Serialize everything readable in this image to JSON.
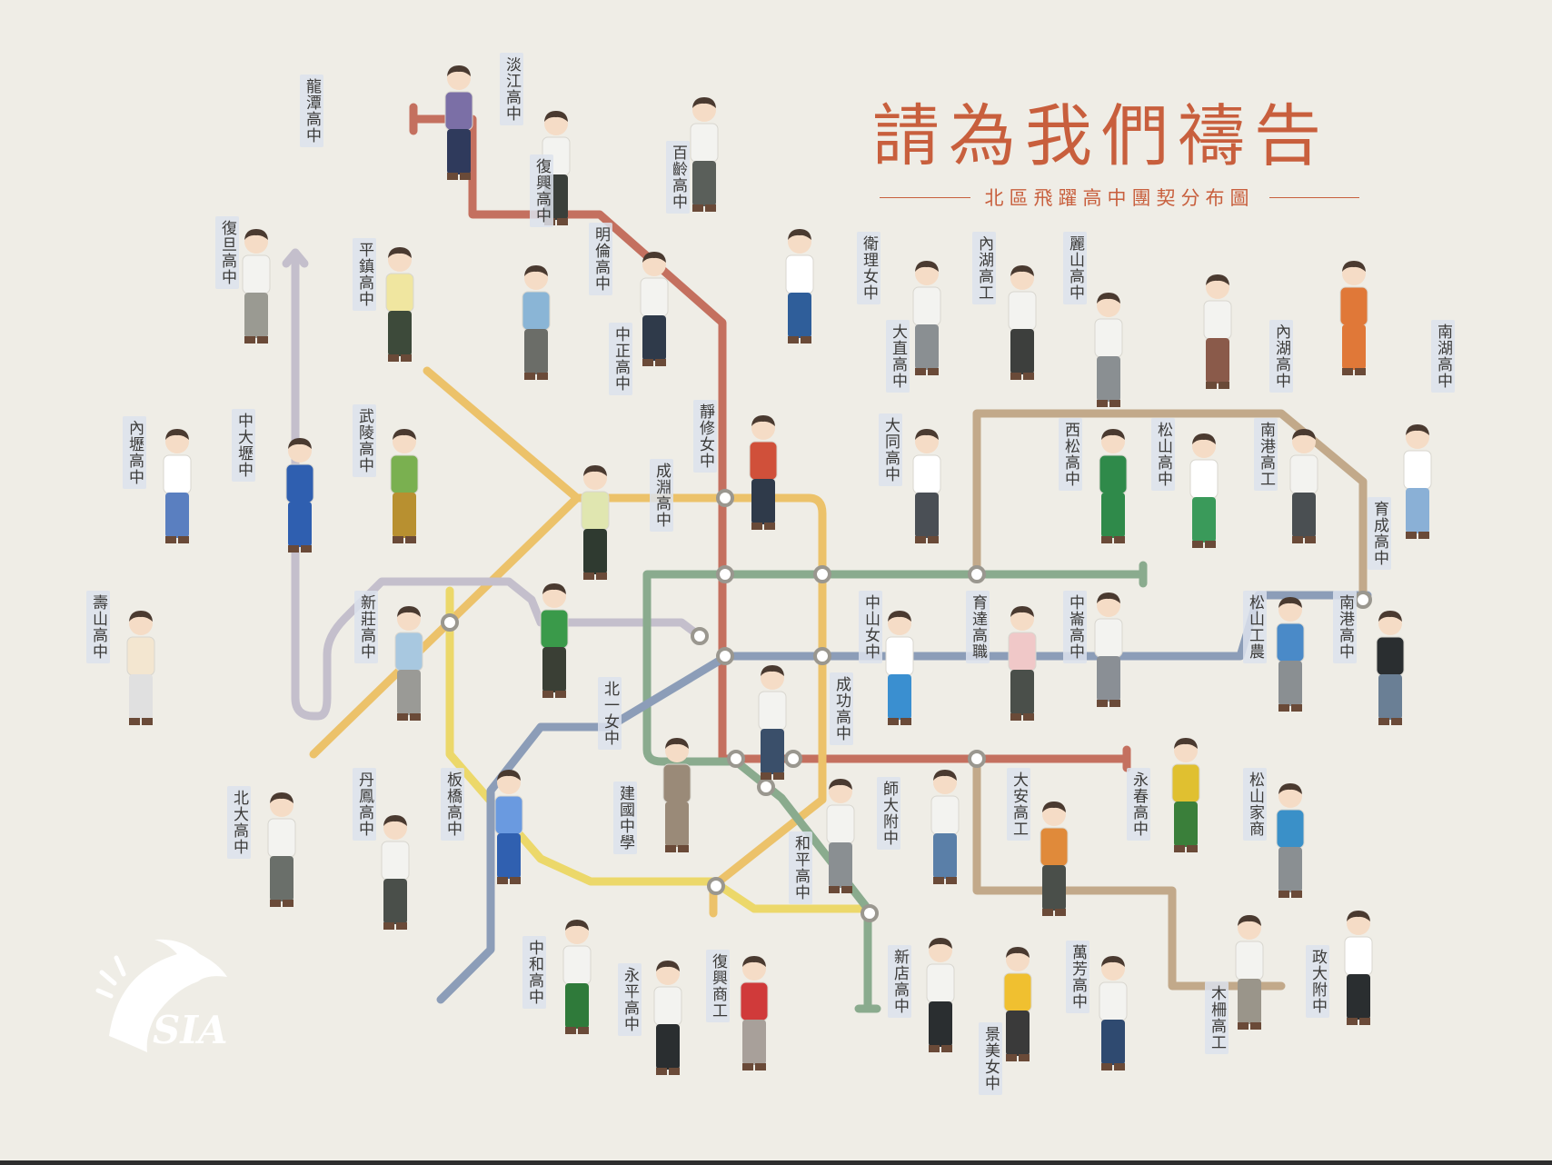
{
  "title": "請為我們禱告",
  "subtitle": "北區飛躍高中團契分布圖",
  "logo_text": "SIA",
  "colors": {
    "background": "#efede6",
    "title": "#c85f3d",
    "line_red": "#c4705f",
    "line_lightorange": "#ecc26a",
    "line_yellow": "#ecd86a",
    "line_green": "#8aab8e",
    "line_blue": "#8c9db8",
    "line_lavender": "#c4bfcc",
    "line_tan": "#c2a98a",
    "station": "#ffffff"
  },
  "schools": [
    "龍潭高中",
    "淡江高中",
    "復興高中",
    "百齡高中",
    "復旦高中",
    "平鎮高中",
    "明倫高中",
    "中正高中",
    "衛理女中",
    "內湖高工",
    "麗山高中",
    "大直高中",
    "內湖高中",
    "南湖高中",
    "內壢高中",
    "中大壢中",
    "武陵高中",
    "靜修女中",
    "成淵高中",
    "大同高中",
    "西松高中",
    "松山高中",
    "南港高工",
    "育成高中",
    "壽山高中",
    "新莊高中",
    "中山女中",
    "育達高職",
    "中崙高中",
    "松山工農",
    "南港高中",
    "北一女中",
    "成功高中",
    "北大高中",
    "丹鳳高中",
    "板橋高中",
    "建國中學",
    "師大附中",
    "大安高工",
    "永春高中",
    "松山家商",
    "和平高中",
    "中和高中",
    "永平高中",
    "復興商工",
    "新店高中",
    "景美女中",
    "萬芳高中",
    "木柵高工",
    "政大附中"
  ]
}
